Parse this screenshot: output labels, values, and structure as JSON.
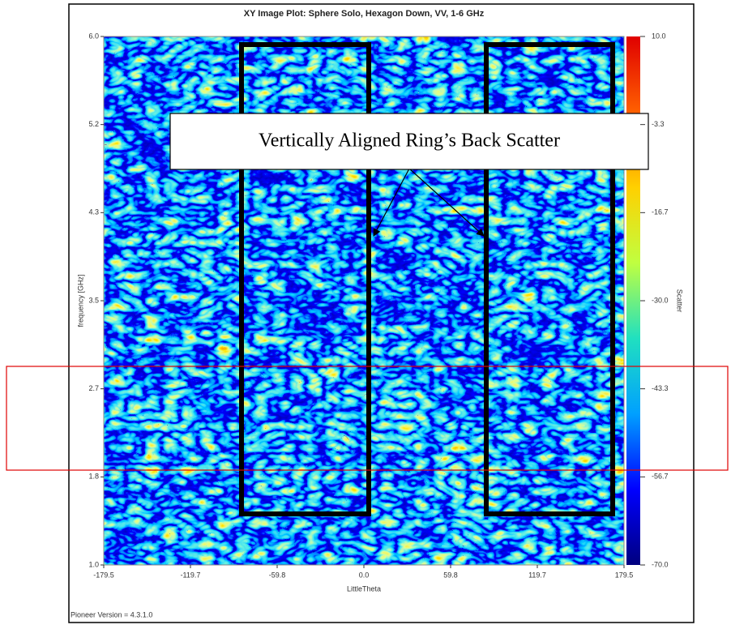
{
  "chart_data": {
    "type": "heatmap",
    "title": "XY Image Plot: Sphere Solo, Hexagon Down, VV, 1-6 GHz",
    "xlabel": "LittleTheta",
    "ylabel": "frequency [GHz]",
    "colorbar_label": "Scatter",
    "xlim": [
      -179.5,
      179.5
    ],
    "xticks": [
      {
        "value": -179.5,
        "label": "-179.5"
      },
      {
        "value": -119.667,
        "label": "-119.7"
      },
      {
        "value": -59.833,
        "label": "-59.8"
      },
      {
        "value": 0,
        "label": "0.0"
      },
      {
        "value": 59.833,
        "label": "59.8"
      },
      {
        "value": 119.667,
        "label": "119.7"
      },
      179.5
    ],
    "ylim": [
      1,
      6
    ],
    "yticks": [
      {
        "value": 1,
        "label": "1.0"
      },
      {
        "value": 1.8333,
        "label": "1.8"
      },
      {
        "value": 2.6667,
        "label": "2.7"
      },
      3.5,
      {
        "value": 4.3333,
        "label": "4.3"
      },
      {
        "value": 5.1667,
        "label": "5.2"
      },
      {
        "value": 6,
        "label": "6.0"
      }
    ],
    "clim": [
      -70,
      10
    ],
    "cticks": [
      {
        "value": -70,
        "label": "-70.0"
      },
      {
        "value": -56.667,
        "label": "-56.7"
      },
      {
        "value": -43.333,
        "label": "-43.3"
      },
      {
        "value": -30,
        "label": "-30.0"
      },
      {
        "value": -16.667,
        "label": "-16.7"
      },
      {
        "value": -3.333,
        "label": "-3.3"
      },
      {
        "value": 10,
        "label": "10.0"
      }
    ],
    "colormap": [
      "#00007f",
      "#0000ff",
      "#00a0ff",
      "#20e0c0",
      "#c0ff40",
      "#ffd000",
      "#ff6000",
      "#e00000"
    ],
    "annotation": "Vertically Aligned Ring’s Back Scatter",
    "footer": "Pioneer Version = 4.3.1.0"
  }
}
